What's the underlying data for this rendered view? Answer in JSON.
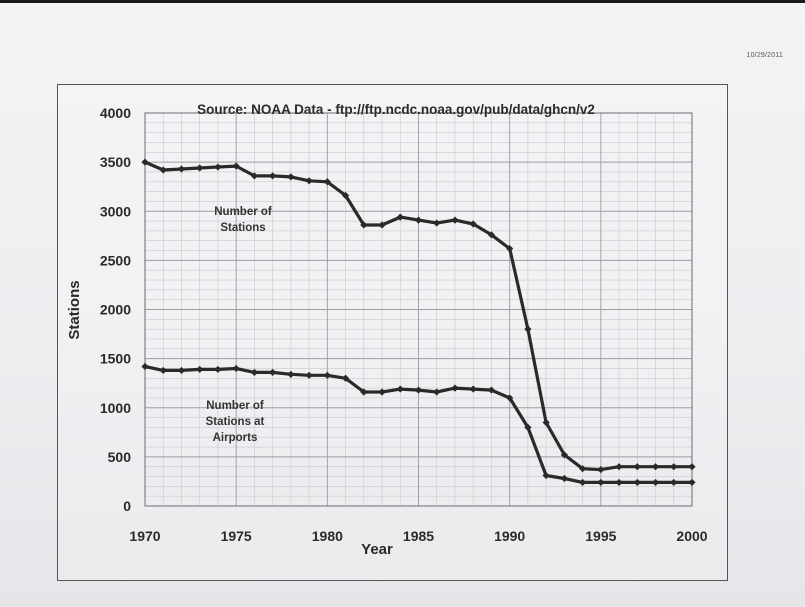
{
  "page": {
    "date_stamp": "10/29/2011"
  },
  "chart_data": {
    "type": "line",
    "title": "Source: NOAA Data - ftp://ftp.ncdc.noaa.gov/pub/data/ghcn/v2",
    "xlabel": "Year",
    "ylabel": "Stations",
    "xlim": [
      1970,
      2000
    ],
    "ylim": [
      0,
      4000
    ],
    "x_ticks": [
      1970,
      1975,
      1980,
      1985,
      1990,
      1995,
      2000
    ],
    "y_ticks": [
      0,
      500,
      1000,
      1500,
      2000,
      2500,
      3000,
      3500,
      4000
    ],
    "grid": true,
    "legend": "none",
    "series": [
      {
        "annotation": [
          "Number of",
          "Stations"
        ],
        "color": "#2a2a2a",
        "x": [
          1970,
          1971,
          1972,
          1973,
          1974,
          1975,
          1976,
          1977,
          1978,
          1979,
          1980,
          1981,
          1982,
          1983,
          1984,
          1985,
          1986,
          1987,
          1988,
          1989,
          1990,
          1991,
          1992,
          1993,
          1994,
          1995,
          1996,
          1997,
          1998,
          1999,
          2000
        ],
        "y": [
          3500,
          3420,
          3430,
          3440,
          3450,
          3460,
          3360,
          3360,
          3350,
          3310,
          3300,
          3160,
          2860,
          2860,
          2940,
          2910,
          2880,
          2910,
          2870,
          2760,
          2620,
          1800,
          850,
          520,
          380,
          370,
          400,
          400,
          400,
          400,
          400
        ]
      },
      {
        "annotation": [
          "Number of",
          "Stations at",
          "Airports"
        ],
        "color": "#2a2a2a",
        "x": [
          1970,
          1971,
          1972,
          1973,
          1974,
          1975,
          1976,
          1977,
          1978,
          1979,
          1980,
          1981,
          1982,
          1983,
          1984,
          1985,
          1986,
          1987,
          1988,
          1989,
          1990,
          1991,
          1992,
          1993,
          1994,
          1995,
          1996,
          1997,
          1998,
          1999,
          2000
        ],
        "y": [
          1420,
          1380,
          1380,
          1390,
          1390,
          1400,
          1360,
          1360,
          1340,
          1330,
          1330,
          1300,
          1160,
          1160,
          1190,
          1180,
          1160,
          1200,
          1190,
          1180,
          1100,
          800,
          310,
          280,
          240,
          240,
          240,
          240,
          240,
          240,
          240
        ]
      }
    ]
  }
}
